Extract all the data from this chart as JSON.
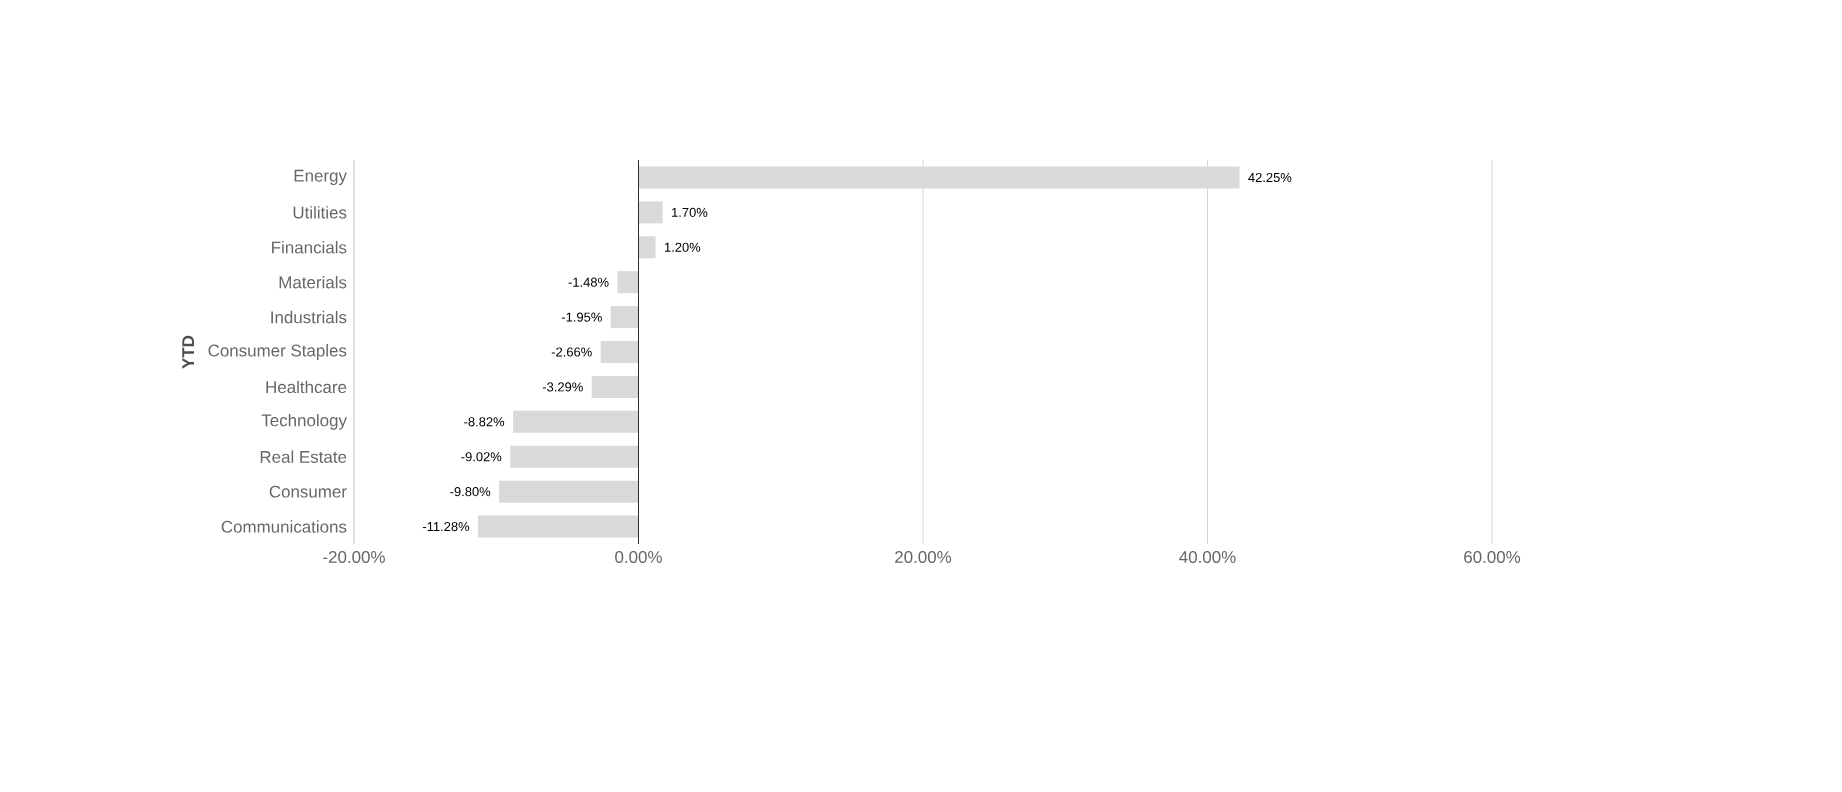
{
  "chart_data": {
    "type": "bar",
    "orientation": "horizontal",
    "ylabel": "YTD",
    "categories": [
      "Energy",
      "Utilities",
      "Financials",
      "Materials",
      "Industrials",
      "Consumer Staples",
      "Healthcare",
      "Technology",
      "Real Estate",
      "Consumer",
      "Communications"
    ],
    "values": [
      42.25,
      1.7,
      1.2,
      -1.48,
      -1.95,
      -2.66,
      -3.29,
      -8.82,
      -9.02,
      -9.8,
      -11.28
    ],
    "value_labels": [
      "42.25%",
      "1.70%",
      "1.20%",
      "-1.48%",
      "-1.95%",
      "-2.66%",
      "-3.29%",
      "-8.82%",
      "-9.02%",
      "-9.80%",
      "-11.28%"
    ],
    "color": "#d9d9d9",
    "xlim": [
      -20,
      60
    ],
    "xticks": [
      {
        "value": -20,
        "label": "-20.00%"
      },
      {
        "value": 0,
        "label": "0.00%"
      },
      {
        "value": 20,
        "label": "20.00%"
      },
      {
        "value": 40,
        "label": "40.00%"
      },
      {
        "value": 60,
        "label": "60.00%"
      }
    ],
    "grid": "x"
  }
}
